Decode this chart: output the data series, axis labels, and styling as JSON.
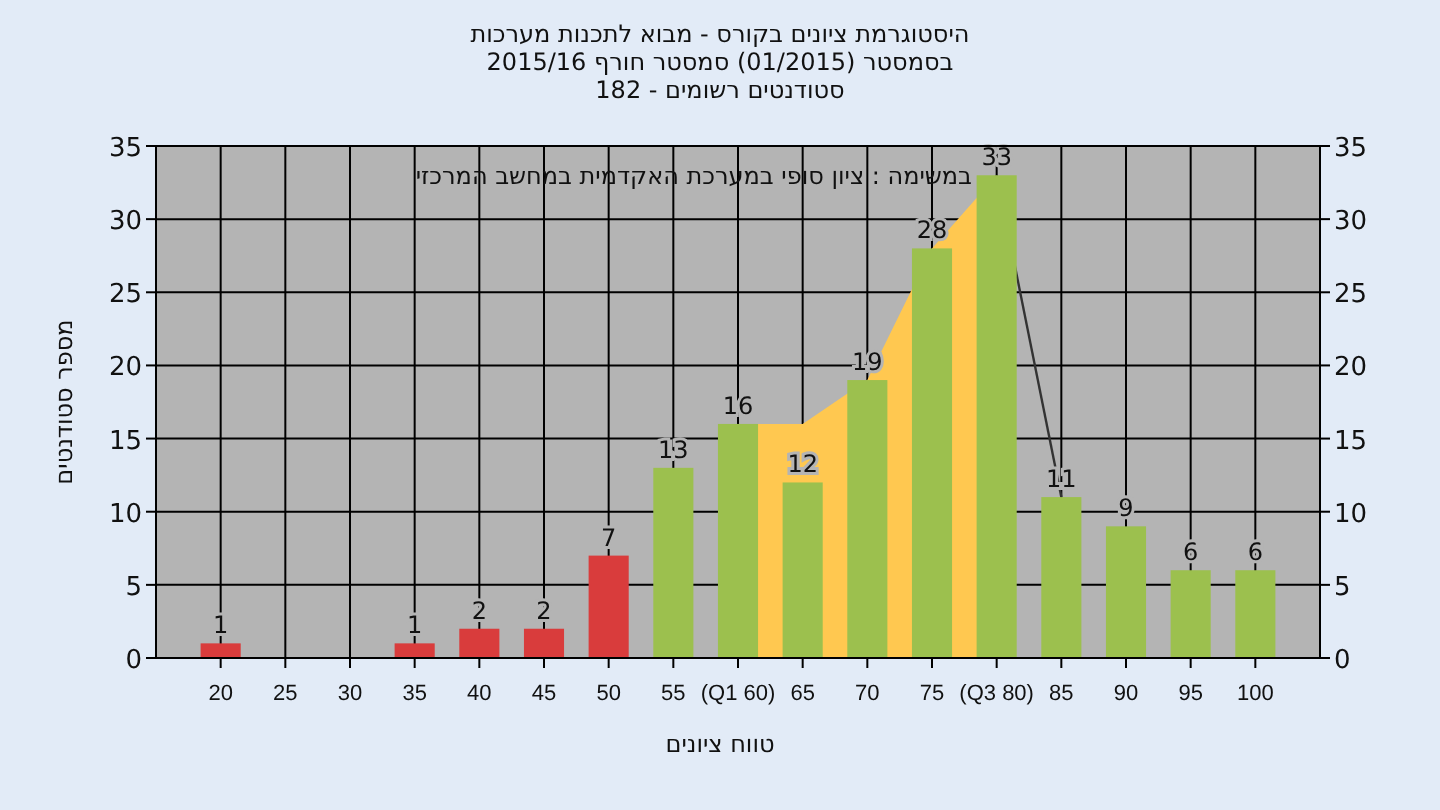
{
  "chart_data": {
    "type": "bar",
    "title": "היסטוגרמת ציונים בקורס - מבוא לתכנות מערכות",
    "subtitle": "בסמסטר  (01/2015)  סמסטר חורף 2015/16\nסטודנטים רשומים - 182",
    "xlabel": "טווח ציונים",
    "ylabel": "מספר סטודנטים",
    "annotations": [
      "במשימה : ציון סופי במערכת האקדמית במחשב המרכזי"
    ],
    "xlim": [
      15,
      105
    ],
    "xticks": [
      20,
      25,
      30,
      35,
      40,
      45,
      50,
      55,
      {
        "value": 60,
        "label": "(Q1 60)"
      },
      65,
      70,
      75,
      {
        "value": 80,
        "label": "(Q3 80)"
      },
      85,
      90,
      95,
      100
    ],
    "ylim": [
      0,
      35
    ],
    "yticks": [
      0,
      5,
      10,
      15,
      20,
      25,
      30,
      35
    ],
    "y2lim": [
      0,
      35
    ],
    "y2ticks": [
      0,
      5,
      10,
      15,
      20,
      25,
      30,
      35
    ],
    "grid": true,
    "series": [
      {
        "type": "area",
        "color": "#ffc850",
        "x": [
          60,
          65,
          70,
          75,
          80
        ],
        "values": [
          16,
          16,
          19,
          28,
          33
        ]
      },
      {
        "type": "line",
        "color": "#333333",
        "x": [
          80,
          85
        ],
        "values": [
          33,
          11
        ]
      },
      {
        "x": [
          20,
          25,
          30,
          35,
          40,
          45,
          50,
          55,
          60,
          65,
          70,
          75,
          80,
          85,
          90,
          95,
          100
        ],
        "values": [
          1,
          0,
          0,
          1,
          2,
          2,
          7,
          13,
          16,
          12,
          19,
          28,
          33,
          11,
          9,
          6,
          6
        ],
        "value_labels": [
          "1",
          null,
          null,
          "1",
          "2",
          "2",
          "7",
          "13",
          "16",
          "12",
          "19",
          "28",
          "33",
          "11",
          "9",
          "6",
          "6"
        ],
        "colors": [
          "#d93c3c",
          "#d93c3c",
          "#d93c3c",
          "#d93c3c",
          "#d93c3c",
          "#d93c3c",
          "#d93c3c",
          "#9cc04e",
          "#9cc04e",
          "#9cc04e",
          "#9cc04e",
          "#9cc04e",
          "#9cc04e",
          "#9cc04e",
          "#9cc04e",
          "#9cc04e",
          "#9cc04e"
        ]
      }
    ]
  }
}
